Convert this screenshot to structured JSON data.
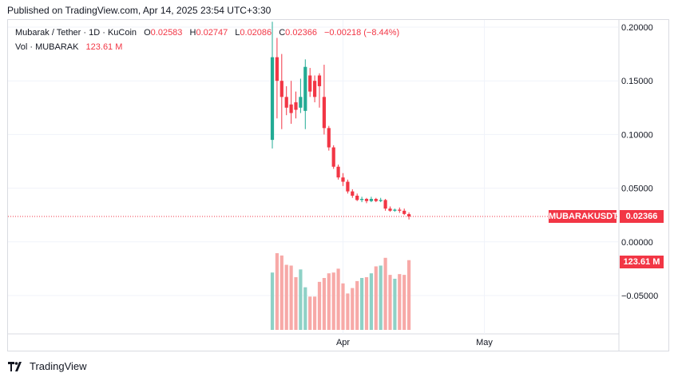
{
  "header": {
    "published": "Published on TradingView.com, Apr 14, 2025 23:54 UTC+3:30"
  },
  "legend": {
    "symbol": "Mubarak / Tether · 1D · KuCoin",
    "o_label": "O",
    "o_value": "0.02583",
    "h_label": "H",
    "h_value": "0.02747",
    "l_label": "L",
    "l_value": "0.02086",
    "c_label": "C",
    "c_value": "0.02366",
    "change": "−0.00218 (−8.44%)",
    "vol_label": "Vol · MUBARAK",
    "vol_value": "123.61 M"
  },
  "badges": {
    "symbol": "MUBARAKUSDT",
    "price": "0.02366",
    "volume": "123.61 M"
  },
  "footer": {
    "brand": "TradingView"
  },
  "colors": {
    "up": "#22ab94",
    "down": "#f23645",
    "up_vol": "#8ed1c6",
    "down_vol": "#f7a9a7"
  },
  "chart_data": {
    "type": "candlestick",
    "title": "Mubarak / Tether · 1D · KuCoin",
    "y_ticks": [
      "0.20000",
      "0.15000",
      "0.10000",
      "0.05000",
      "0.00000",
      "−0.05000"
    ],
    "ylim": [
      -0.085,
      0.2
    ],
    "x_ticks": [
      {
        "label": "Apr",
        "index": 15
      },
      {
        "label": "May",
        "index": 45
      }
    ],
    "last_price": 0.02366,
    "grid": true,
    "candles": [
      {
        "o": 0.095,
        "h": 0.205,
        "l": 0.087,
        "c": 0.172
      },
      {
        "o": 0.172,
        "h": 0.19,
        "l": 0.115,
        "c": 0.15
      },
      {
        "o": 0.15,
        "h": 0.175,
        "l": 0.105,
        "c": 0.135
      },
      {
        "o": 0.135,
        "h": 0.145,
        "l": 0.118,
        "c": 0.125
      },
      {
        "o": 0.128,
        "h": 0.15,
        "l": 0.11,
        "c": 0.12
      },
      {
        "o": 0.13,
        "h": 0.14,
        "l": 0.115,
        "c": 0.123
      },
      {
        "o": 0.125,
        "h": 0.152,
        "l": 0.12,
        "c": 0.135
      },
      {
        "o": 0.122,
        "h": 0.17,
        "l": 0.105,
        "c": 0.163
      },
      {
        "o": 0.155,
        "h": 0.162,
        "l": 0.135,
        "c": 0.14
      },
      {
        "o": 0.15,
        "h": 0.155,
        "l": 0.13,
        "c": 0.135
      },
      {
        "o": 0.155,
        "h": 0.157,
        "l": 0.125,
        "c": 0.145
      },
      {
        "o": 0.135,
        "h": 0.165,
        "l": 0.1,
        "c": 0.106
      },
      {
        "o": 0.106,
        "h": 0.108,
        "l": 0.085,
        "c": 0.088
      },
      {
        "o": 0.088,
        "h": 0.09,
        "l": 0.068,
        "c": 0.07
      },
      {
        "o": 0.07,
        "h": 0.072,
        "l": 0.058,
        "c": 0.06
      },
      {
        "o": 0.06,
        "h": 0.064,
        "l": 0.052,
        "c": 0.056
      },
      {
        "o": 0.056,
        "h": 0.058,
        "l": 0.045,
        "c": 0.047
      },
      {
        "o": 0.047,
        "h": 0.049,
        "l": 0.041,
        "c": 0.043
      },
      {
        "o": 0.043,
        "h": 0.045,
        "l": 0.038,
        "c": 0.039
      },
      {
        "o": 0.039,
        "h": 0.042,
        "l": 0.037,
        "c": 0.04
      },
      {
        "o": 0.04,
        "h": 0.041,
        "l": 0.036,
        "c": 0.038
      },
      {
        "o": 0.038,
        "h": 0.042,
        "l": 0.037,
        "c": 0.04
      },
      {
        "o": 0.04,
        "h": 0.041,
        "l": 0.037,
        "c": 0.038
      },
      {
        "o": 0.038,
        "h": 0.041,
        "l": 0.037,
        "c": 0.039
      },
      {
        "o": 0.039,
        "h": 0.04,
        "l": 0.029,
        "c": 0.031
      },
      {
        "o": 0.031,
        "h": 0.033,
        "l": 0.028,
        "c": 0.029
      },
      {
        "o": 0.029,
        "h": 0.031,
        "l": 0.028,
        "c": 0.03
      },
      {
        "o": 0.03,
        "h": 0.032,
        "l": 0.027,
        "c": 0.029
      },
      {
        "o": 0.029,
        "h": 0.031,
        "l": 0.025,
        "c": 0.026
      },
      {
        "o": 0.02583,
        "h": 0.02747,
        "l": 0.02086,
        "c": 0.02366
      }
    ],
    "volume": [
      0.74,
      0.99,
      0.96,
      0.84,
      0.83,
      0.68,
      0.78,
      0.55,
      0.43,
      0.43,
      0.62,
      0.67,
      0.73,
      0.74,
      0.79,
      0.6,
      0.47,
      0.54,
      0.63,
      0.67,
      0.68,
      0.73,
      0.82,
      0.83,
      0.93,
      0.71,
      0.66,
      0.72,
      0.71,
      0.9
    ]
  }
}
